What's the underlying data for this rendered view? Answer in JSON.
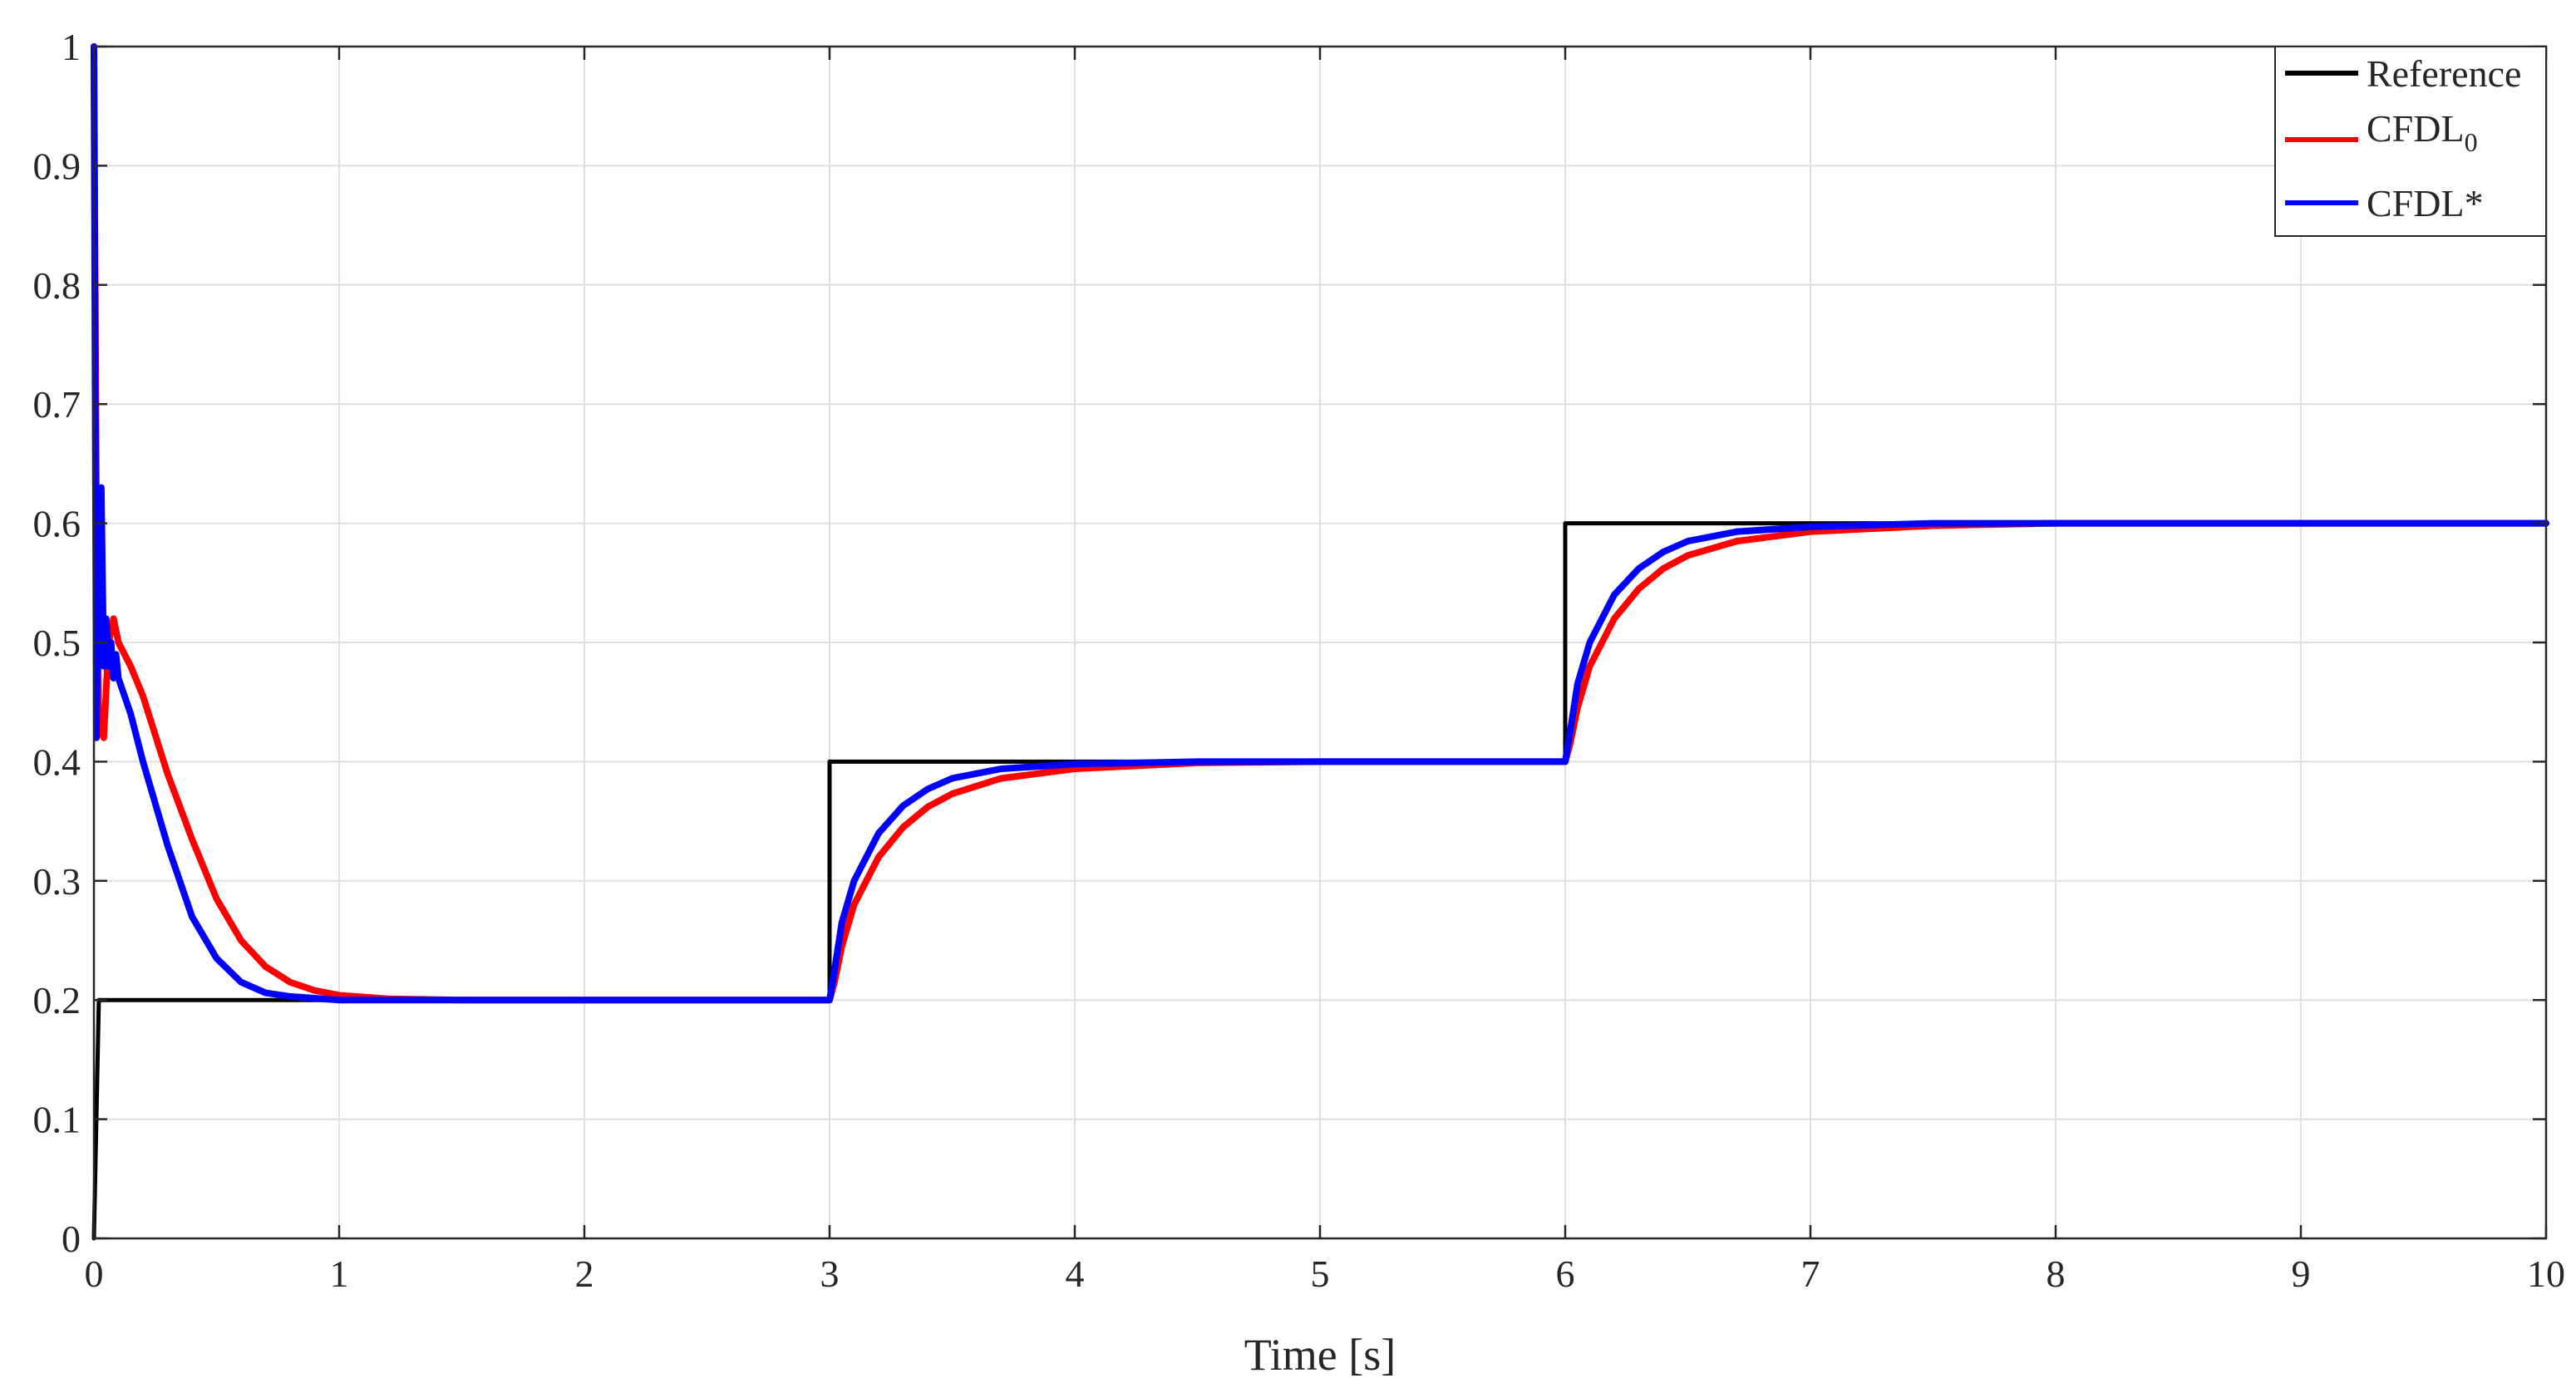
{
  "chart_data": {
    "type": "line",
    "title": "",
    "xlabel": "Time [s]",
    "ylabel": "",
    "xlim": [
      0,
      10
    ],
    "ylim": [
      0,
      1
    ],
    "x_ticks": [
      0,
      1,
      2,
      3,
      4,
      5,
      6,
      7,
      8,
      9,
      10
    ],
    "y_ticks": [
      0,
      0.1,
      0.2,
      0.3,
      0.4,
      0.5,
      0.6,
      0.7,
      0.8,
      0.9,
      1
    ],
    "x_tick_labels": [
      "0",
      "1",
      "2",
      "3",
      "4",
      "5",
      "6",
      "7",
      "8",
      "9",
      "10"
    ],
    "y_tick_labels": [
      "0",
      "0.1",
      "0.2",
      "0.3",
      "0.4",
      "0.5",
      "0.6",
      "0.7",
      "0.8",
      "0.9",
      "1"
    ],
    "grid": true,
    "legend": {
      "placement": "top-right",
      "entries": [
        {
          "text": "Reference",
          "subscript": "",
          "suffix": ""
        },
        {
          "text": "CFDL",
          "subscript": "0",
          "suffix": ""
        },
        {
          "text": "CFDL",
          "subscript": "",
          "suffix": "*"
        }
      ]
    },
    "series": [
      {
        "name": "Reference",
        "color": "#000000",
        "x": [
          0,
          0.02,
          3.0,
          3.0,
          6.0,
          6.0,
          10
        ],
        "y": [
          0,
          0.2,
          0.2,
          0.4,
          0.4,
          0.6,
          0.6
        ]
      },
      {
        "name": "CFDL0",
        "color": "#ff0000",
        "x": [
          0,
          0.01,
          0.02,
          0.04,
          0.06,
          0.08,
          0.1,
          0.15,
          0.2,
          0.3,
          0.4,
          0.5,
          0.6,
          0.7,
          0.8,
          0.9,
          1.0,
          1.2,
          1.5,
          2.0,
          2.5,
          3.0,
          3.02,
          3.05,
          3.1,
          3.2,
          3.3,
          3.4,
          3.5,
          3.7,
          4.0,
          4.5,
          5.0,
          5.5,
          6.0,
          6.02,
          6.05,
          6.1,
          6.2,
          6.3,
          6.4,
          6.5,
          6.7,
          7.0,
          7.5,
          8.0,
          8.5,
          9.0,
          10.0
        ],
        "y": [
          1.0,
          0.62,
          0.43,
          0.42,
          0.5,
          0.52,
          0.5,
          0.48,
          0.455,
          0.39,
          0.335,
          0.285,
          0.25,
          0.228,
          0.215,
          0.208,
          0.204,
          0.201,
          0.2,
          0.2,
          0.2,
          0.2,
          0.215,
          0.245,
          0.28,
          0.32,
          0.345,
          0.362,
          0.373,
          0.386,
          0.394,
          0.399,
          0.4,
          0.4,
          0.4,
          0.415,
          0.445,
          0.48,
          0.52,
          0.545,
          0.562,
          0.573,
          0.585,
          0.593,
          0.598,
          0.6,
          0.6,
          0.6,
          0.6
        ]
      },
      {
        "name": "CFDL*",
        "color": "#0000ff",
        "x": [
          0,
          0.01,
          0.02,
          0.03,
          0.04,
          0.05,
          0.06,
          0.07,
          0.08,
          0.09,
          0.1,
          0.15,
          0.2,
          0.3,
          0.4,
          0.5,
          0.6,
          0.7,
          0.8,
          1.0,
          1.2,
          1.5,
          2.0,
          2.5,
          3.0,
          3.02,
          3.05,
          3.1,
          3.2,
          3.3,
          3.4,
          3.5,
          3.7,
          4.0,
          4.5,
          5.0,
          6.0,
          6.02,
          6.05,
          6.1,
          6.2,
          6.3,
          6.4,
          6.5,
          6.7,
          7.0,
          7.5,
          8.0,
          9.0,
          10.0
        ],
        "y": [
          1.0,
          0.42,
          0.6,
          0.63,
          0.48,
          0.52,
          0.48,
          0.5,
          0.47,
          0.49,
          0.47,
          0.44,
          0.4,
          0.33,
          0.27,
          0.235,
          0.215,
          0.206,
          0.203,
          0.2,
          0.2,
          0.2,
          0.2,
          0.2,
          0.2,
          0.225,
          0.265,
          0.3,
          0.34,
          0.363,
          0.377,
          0.386,
          0.394,
          0.398,
          0.4,
          0.4,
          0.4,
          0.425,
          0.465,
          0.5,
          0.54,
          0.562,
          0.576,
          0.585,
          0.593,
          0.597,
          0.6,
          0.6,
          0.6,
          0.6
        ]
      }
    ]
  }
}
